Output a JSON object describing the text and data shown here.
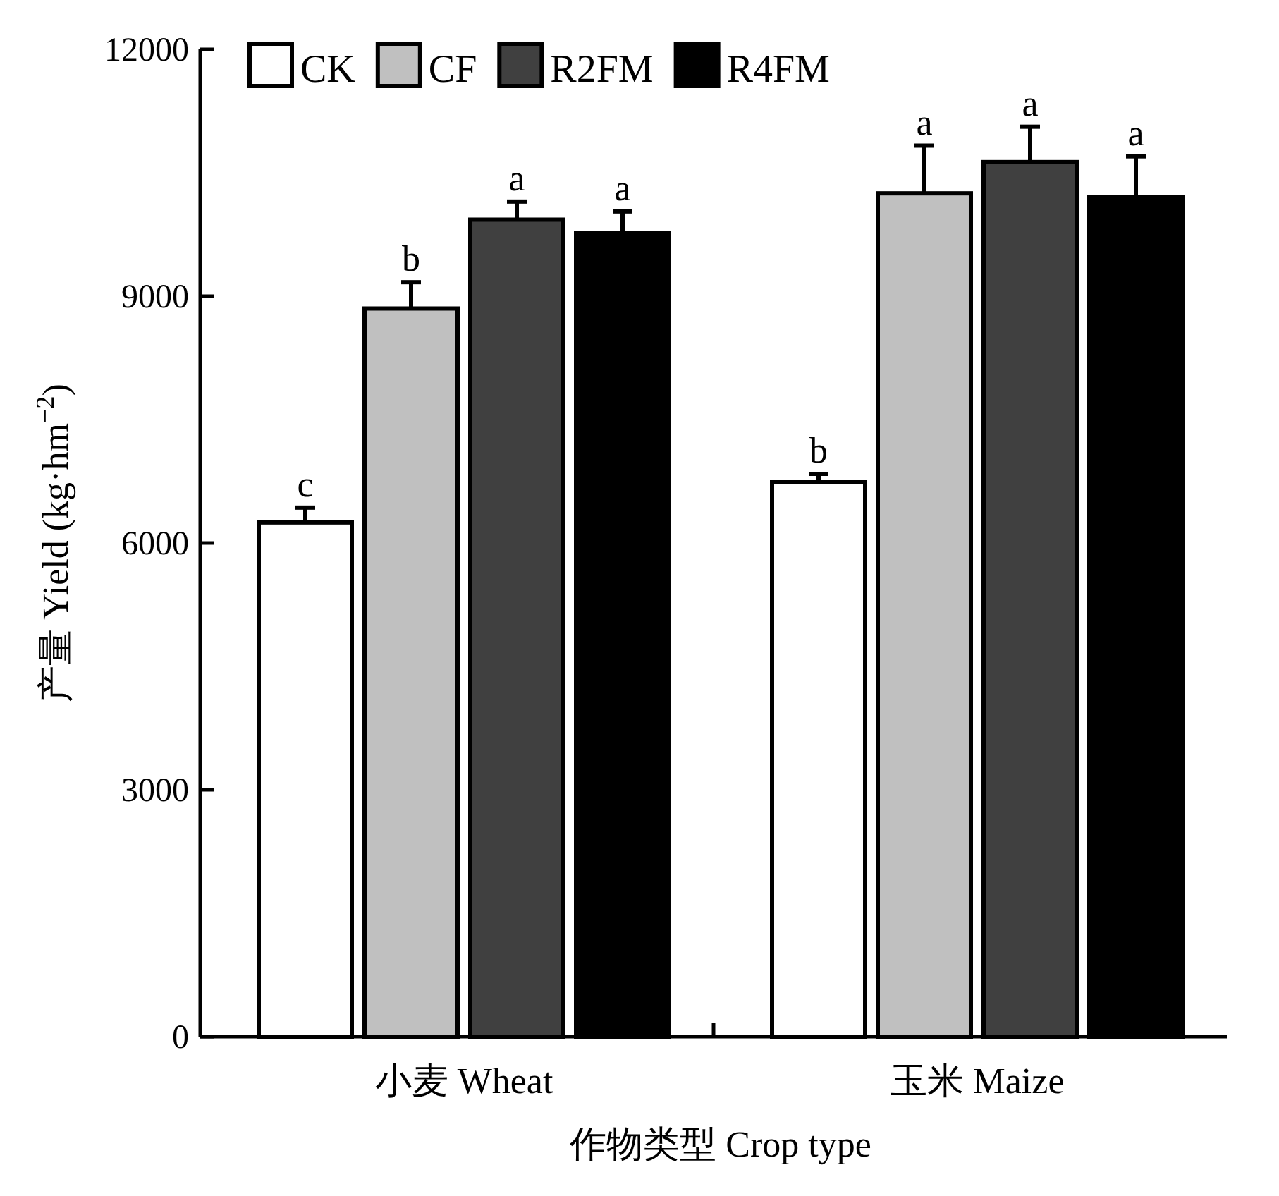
{
  "chart_data": {
    "type": "bar",
    "xlabel": "作物类型  Crop type",
    "ylabel": "产量 Yield (kg·hm$^{−2}$)",
    "categories": [
      "小麦 Wheat",
      "玉米 Maize"
    ],
    "series": [
      {
        "name": "CK",
        "color": "#ffffff",
        "values": [
          6250,
          6740
        ],
        "errors": [
          [
            6250,
            6430
          ],
          [
            6740,
            6840
          ]
        ],
        "value_labels": [
          "c",
          "b"
        ]
      },
      {
        "name": "CF",
        "color": "#c0c0c0",
        "values": [
          8850,
          10250
        ],
        "errors": [
          [
            8850,
            9170
          ],
          [
            10250,
            10830
          ]
        ],
        "value_labels": [
          "b",
          "a"
        ]
      },
      {
        "name": "R2FM",
        "color": "#404040",
        "values": [
          9930,
          10630
        ],
        "errors": [
          [
            9930,
            10150
          ],
          [
            10630,
            11060
          ]
        ],
        "value_labels": [
          "a",
          "a"
        ]
      },
      {
        "name": "R4FM",
        "color": "#000000",
        "values": [
          9770,
          10200
        ],
        "errors": [
          [
            9770,
            10030
          ],
          [
            10200,
            10700
          ]
        ],
        "value_labels": [
          "a",
          "a"
        ]
      }
    ],
    "ylim": [
      0,
      12000
    ],
    "yticks": [
      0,
      3000,
      6000,
      9000,
      12000
    ],
    "grid": false,
    "legend": "top left"
  }
}
